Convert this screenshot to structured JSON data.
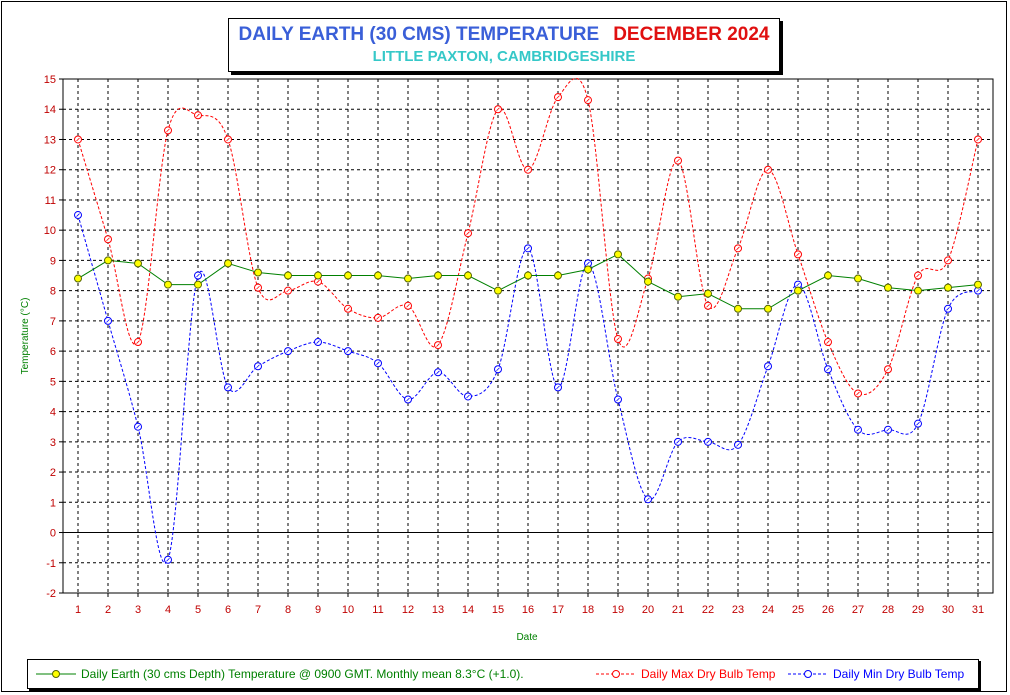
{
  "title": {
    "main": "DAILY EARTH (30 CMS) TEMPERATURE",
    "month": "DECEMBER 2024",
    "subtitle": "LITTLE PAXTON, CAMBRIDGESHIRE"
  },
  "colors": {
    "title_main": "#3a5fd8",
    "title_month": "#e01010",
    "subtitle": "#35c8c8",
    "earth": "#008000",
    "earth_marker": "#ffff00",
    "max": "#ff0000",
    "min": "#0000ff",
    "tick_text": "#c00000",
    "axis_label": "#008000"
  },
  "chart_data": {
    "type": "line",
    "xlabel": "Date",
    "ylabel": "Temperature (°C)",
    "ylim": [
      -2,
      15
    ],
    "y_ticks": [
      -2,
      -1,
      0,
      1,
      2,
      3,
      4,
      5,
      6,
      7,
      8,
      9,
      10,
      11,
      12,
      13,
      14,
      15
    ],
    "x": [
      1,
      2,
      3,
      4,
      5,
      6,
      7,
      8,
      9,
      10,
      11,
      12,
      13,
      14,
      15,
      16,
      17,
      18,
      19,
      20,
      21,
      22,
      23,
      24,
      25,
      26,
      27,
      28,
      29,
      30,
      31
    ],
    "grid": true,
    "legend_position": "bottom",
    "series": [
      {
        "name": "Daily Earth (30 cms Depth) Temperature @ 0900 GMT. Monthly mean 8.3°C (+1.0).",
        "style": "solid",
        "values": [
          8.4,
          9.0,
          8.9,
          8.2,
          8.2,
          8.9,
          8.6,
          8.5,
          8.5,
          8.5,
          8.5,
          8.4,
          8.5,
          8.5,
          8.0,
          8.5,
          8.5,
          8.7,
          9.2,
          8.3,
          7.8,
          7.9,
          7.4,
          7.4,
          8.0,
          8.5,
          8.4,
          8.1,
          8.0,
          8.1,
          8.2
        ]
      },
      {
        "name": "Daily Max Dry Bulb Temp",
        "style": "dashed",
        "values": [
          13.0,
          9.7,
          6.3,
          13.3,
          13.8,
          13.0,
          8.1,
          8.0,
          8.3,
          7.4,
          7.1,
          7.5,
          6.2,
          9.9,
          14.0,
          12.0,
          14.4,
          14.3,
          6.4,
          8.4,
          12.3,
          7.5,
          9.4,
          12.0,
          9.2,
          6.3,
          4.6,
          5.4,
          8.5,
          9.0,
          13.0
        ]
      },
      {
        "name": "Daily Min Dry Bulb Temp",
        "style": "dashed",
        "values": [
          10.5,
          7.0,
          3.5,
          -0.9,
          8.5,
          4.8,
          5.5,
          6.0,
          6.3,
          6.0,
          5.6,
          4.4,
          5.3,
          4.5,
          5.4,
          9.4,
          4.8,
          8.9,
          4.4,
          1.1,
          3.0,
          3.0,
          2.9,
          5.5,
          8.2,
          5.4,
          3.4,
          3.4,
          3.6,
          7.4,
          8.0
        ]
      }
    ]
  }
}
